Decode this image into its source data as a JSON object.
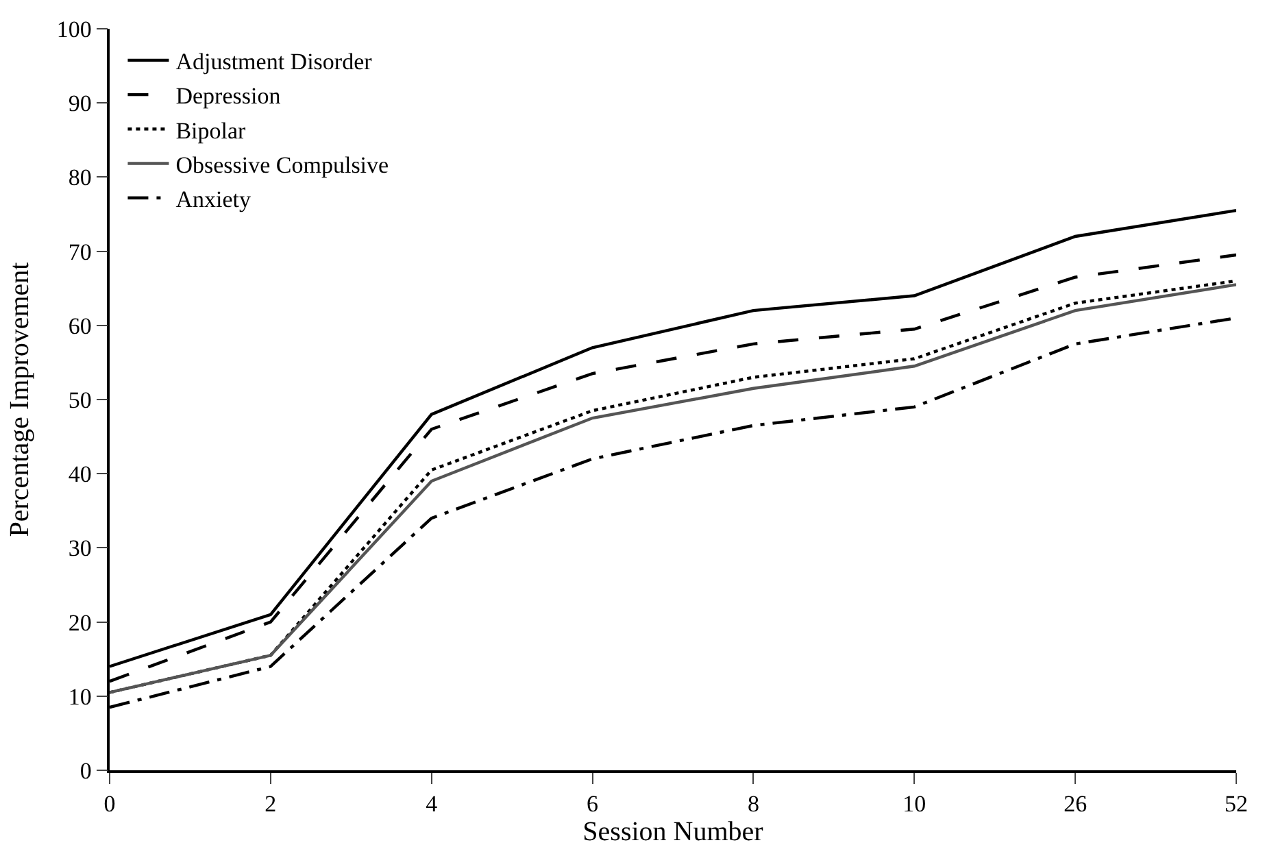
{
  "chart_data": {
    "type": "line",
    "xlabel": "Session Number",
    "ylabel": "Percentage Improvement",
    "categories": [
      "0",
      "2",
      "4",
      "6",
      "8",
      "10",
      "26",
      "52"
    ],
    "series": [
      {
        "name": "Adjustment Disorder",
        "color": "#000000",
        "line_style": "solid",
        "values": [
          14,
          21,
          48,
          57,
          62,
          64,
          72,
          75.5
        ]
      },
      {
        "name": "Depression",
        "color": "#000000",
        "line_style": "dashed",
        "values": [
          12,
          20,
          46,
          53.5,
          57.5,
          59.5,
          66.5,
          69.5
        ]
      },
      {
        "name": "Bipolar",
        "color": "#000000",
        "line_style": "dotted",
        "values": [
          10.5,
          15.5,
          40.5,
          48.5,
          53,
          55.5,
          63,
          66
        ]
      },
      {
        "name": "Obsessive Compulsive",
        "color": "#555555",
        "line_style": "solid",
        "values": [
          10.5,
          15.5,
          39,
          47.5,
          51.5,
          54.5,
          62,
          65.5
        ]
      },
      {
        "name": "Anxiety",
        "color": "#000000",
        "line_style": "dashdot",
        "values": [
          8.5,
          14,
          34,
          42,
          46.5,
          49,
          57.5,
          61
        ]
      }
    ],
    "ylim": [
      0,
      100
    ],
    "yticks": [
      0,
      10,
      20,
      30,
      40,
      50,
      60,
      70,
      80,
      90,
      100
    ],
    "legend": "top left",
    "marker": "none"
  }
}
